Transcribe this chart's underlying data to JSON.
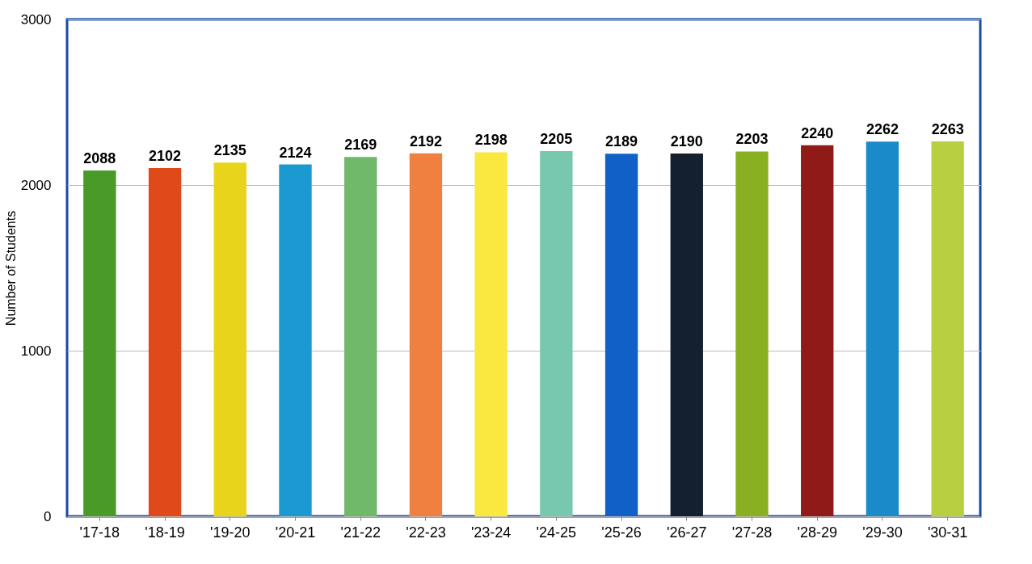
{
  "chart_data": {
    "type": "bar",
    "ylabel": "Number of Students",
    "categories": [
      "'17-18",
      "'18-19",
      "'19-20",
      "'20-21",
      "'21-22",
      "'22-23",
      "'23-24",
      "'24-25",
      "'25-26",
      "'26-27",
      "'27-28",
      "'28-29",
      "'29-30",
      "'30-31"
    ],
    "values": [
      2088,
      2102,
      2135,
      2124,
      2169,
      2192,
      2198,
      2205,
      2189,
      2190,
      2203,
      2240,
      2262,
      2263
    ],
    "colors": [
      "#4a9a2a",
      "#e04a1a",
      "#e8d41a",
      "#1a9ad0",
      "#70b86a",
      "#f08040",
      "#f8e840",
      "#78c8b0",
      "#1060c8",
      "#142030",
      "#88b020",
      "#901a18",
      "#1a8ac8",
      "#b8d040"
    ],
    "ylim": [
      0,
      3000
    ],
    "yticks": [
      0,
      1000,
      2000,
      3000
    ],
    "grid": "y",
    "data_labels": true
  }
}
